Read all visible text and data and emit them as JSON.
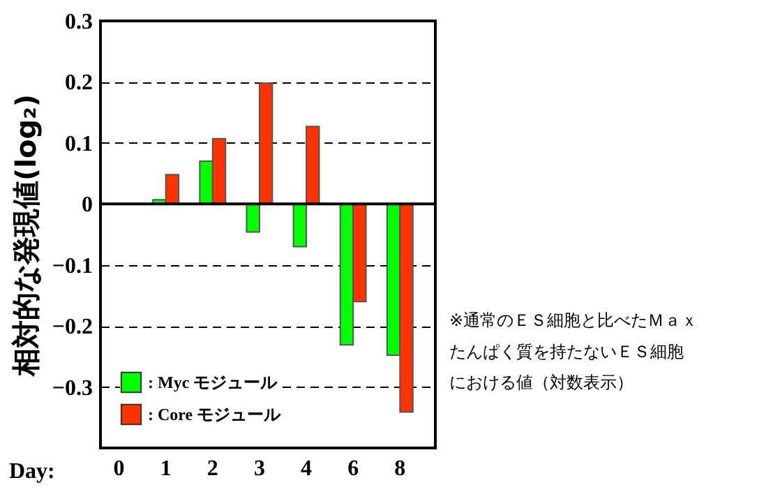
{
  "chart_data": {
    "type": "bar",
    "ylabel": "相対的な発現値(log₂)",
    "xlabel": "Day:",
    "categories": [
      "0",
      "1",
      "2",
      "3",
      "4",
      "6",
      "8"
    ],
    "series": [
      {
        "name": ": Myc モジュール",
        "color": "#00ff00",
        "values": [
          null,
          0.007,
          0.07,
          -0.046,
          -0.07,
          -0.231,
          -0.248
        ]
      },
      {
        "name": ": Core モジュール",
        "color": "#ff3300",
        "values": [
          null,
          0.048,
          0.107,
          0.198,
          0.127,
          -0.16,
          -0.341
        ]
      }
    ],
    "ylim": [
      -0.4,
      0.3
    ],
    "yticks": [
      0.3,
      0.2,
      0.1,
      0,
      -0.1,
      -0.2,
      -0.3
    ],
    "grid": "y",
    "legend": "bottom left",
    "annotations": [
      "※通常のＥＳ細胞と比べたＭａｘ",
      "たんぱく質を持たないＥＳ細胞",
      "における値（対数表示）"
    ]
  }
}
